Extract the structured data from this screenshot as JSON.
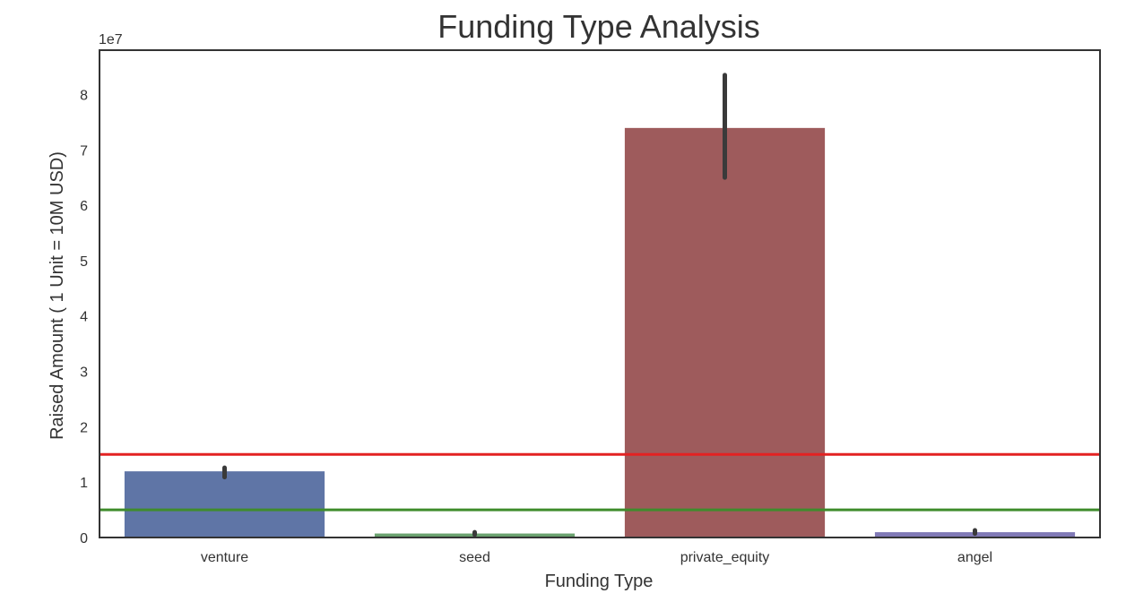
{
  "chart_data": {
    "type": "bar",
    "title": "Funding Type Analysis",
    "xlabel": "Funding Type",
    "ylabel": "Raised Amount  ( 1 Unit = 10M USD)",
    "y_offset_label": "1e7",
    "y_scale": 10000000,
    "ylim": [
      0,
      88000000
    ],
    "yticks": [
      0,
      10000000,
      20000000,
      30000000,
      40000000,
      50000000,
      60000000,
      70000000,
      80000000
    ],
    "ytick_labels": [
      "0",
      "1",
      "2",
      "3",
      "4",
      "5",
      "6",
      "7",
      "8"
    ],
    "categories": [
      "venture",
      "seed",
      "private_equity",
      "angel"
    ],
    "values": [
      11950000,
      720000,
      73950000,
      960000
    ],
    "error_bars": [
      [
        10900000,
        12600000
      ],
      [
        500000,
        950000
      ],
      [
        65000000,
        83500000
      ],
      [
        700000,
        1300000
      ]
    ],
    "bar_colors": [
      "#5f75a6",
      "#6aa26f",
      "#9e5b5c",
      "#8079b6"
    ],
    "errorbar_color": "#3a3a3a",
    "reference_lines": [
      {
        "value": 15000000,
        "color": "#e32222"
      },
      {
        "value": 5000000,
        "color": "#3f8c2c"
      }
    ],
    "grid": false,
    "legend": "none"
  }
}
